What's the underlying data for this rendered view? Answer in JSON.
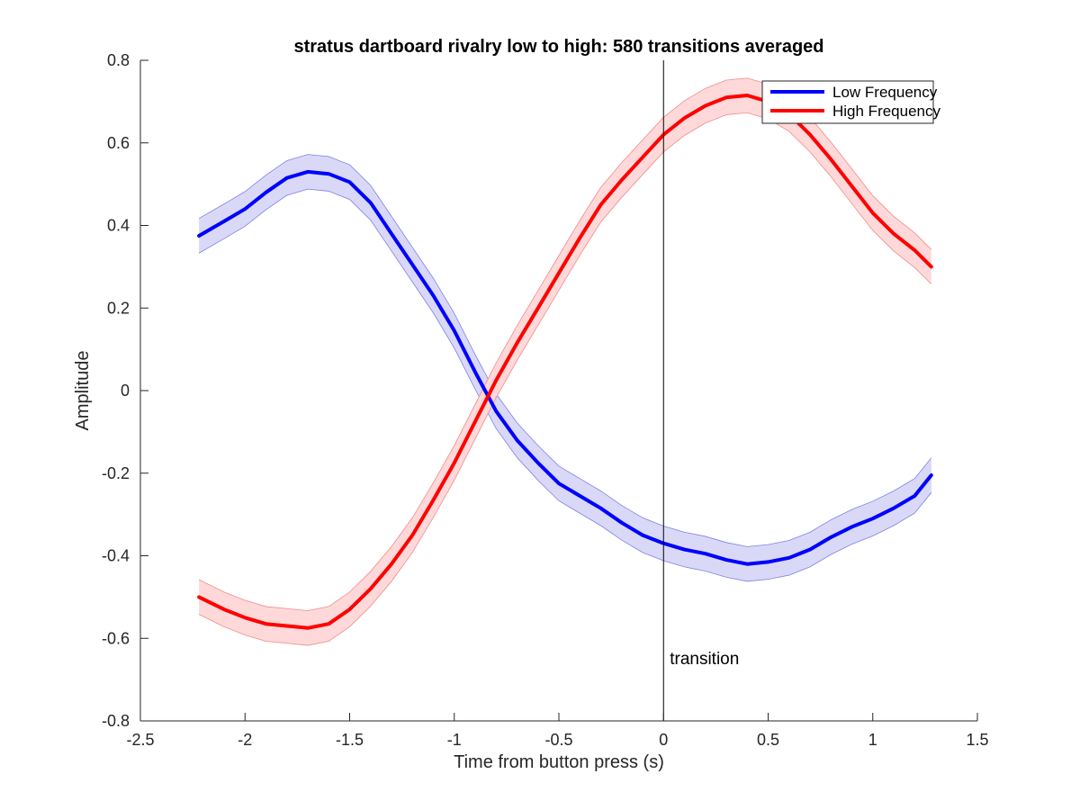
{
  "chart_data": {
    "type": "line",
    "title": "stratus dartboard rivalry low to high: 580 transitions averaged",
    "xlabel": "Time from button press (s)",
    "ylabel": "Amplitude",
    "xlim": [
      -2.5,
      1.5
    ],
    "ylim": [
      -0.8,
      0.8
    ],
    "xticks": [
      -2.5,
      -2,
      -1.5,
      -1,
      -0.5,
      0,
      0.5,
      1,
      1.5
    ],
    "xtick_labels": [
      "-2.5",
      "-2",
      "-1.5",
      "-1",
      "-0.5",
      "0",
      "0.5",
      "1",
      "1.5"
    ],
    "yticks": [
      -0.8,
      -0.6,
      -0.4,
      -0.2,
      0,
      0.2,
      0.4,
      0.6,
      0.8
    ],
    "ytick_labels": [
      "-0.8",
      "-0.6",
      "-0.4",
      "-0.2",
      "0",
      "0.2",
      "0.4",
      "0.6",
      "0.8"
    ],
    "grid": false,
    "legend_position": "top-right",
    "annotation": {
      "text": "transition",
      "x": 0.03,
      "y": -0.65,
      "vline_x": 0
    },
    "series": [
      {
        "name": "Low Frequency",
        "color": "#0000ff",
        "band_color": "#d9d9f7",
        "band_edge_color": "#8080e6",
        "band_halfwidth": 0.042,
        "x": [
          -2.22,
          -2.1,
          -2.0,
          -1.9,
          -1.8,
          -1.7,
          -1.6,
          -1.5,
          -1.4,
          -1.3,
          -1.2,
          -1.1,
          -1.0,
          -0.9,
          -0.8,
          -0.7,
          -0.6,
          -0.5,
          -0.4,
          -0.3,
          -0.2,
          -0.1,
          0.0,
          0.1,
          0.2,
          0.3,
          0.4,
          0.5,
          0.6,
          0.7,
          0.8,
          0.9,
          1.0,
          1.1,
          1.2,
          1.28
        ],
        "y": [
          0.375,
          0.41,
          0.44,
          0.48,
          0.515,
          0.53,
          0.525,
          0.505,
          0.455,
          0.38,
          0.305,
          0.23,
          0.145,
          0.045,
          -0.05,
          -0.12,
          -0.175,
          -0.225,
          -0.255,
          -0.285,
          -0.32,
          -0.35,
          -0.37,
          -0.385,
          -0.395,
          -0.41,
          -0.42,
          -0.415,
          -0.405,
          -0.385,
          -0.355,
          -0.33,
          -0.31,
          -0.285,
          -0.255,
          -0.205
        ]
      },
      {
        "name": "High Frequency",
        "color": "#ff0000",
        "band_color": "#ffd9d9",
        "band_edge_color": "#f08a8a",
        "band_halfwidth": 0.042,
        "x": [
          -2.22,
          -2.1,
          -2.0,
          -1.9,
          -1.8,
          -1.7,
          -1.6,
          -1.5,
          -1.4,
          -1.3,
          -1.2,
          -1.1,
          -1.0,
          -0.9,
          -0.8,
          -0.7,
          -0.6,
          -0.5,
          -0.4,
          -0.3,
          -0.2,
          -0.1,
          0.0,
          0.1,
          0.2,
          0.3,
          0.4,
          0.5,
          0.6,
          0.7,
          0.8,
          0.9,
          1.0,
          1.1,
          1.2,
          1.28
        ],
        "y": [
          -0.5,
          -0.53,
          -0.55,
          -0.565,
          -0.57,
          -0.575,
          -0.565,
          -0.53,
          -0.48,
          -0.42,
          -0.35,
          -0.265,
          -0.175,
          -0.075,
          0.025,
          0.115,
          0.2,
          0.285,
          0.37,
          0.45,
          0.51,
          0.565,
          0.62,
          0.66,
          0.69,
          0.71,
          0.715,
          0.7,
          0.67,
          0.62,
          0.56,
          0.495,
          0.43,
          0.38,
          0.34,
          0.3
        ]
      }
    ]
  }
}
